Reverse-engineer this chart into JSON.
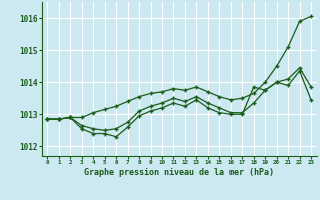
{
  "title": "Graphe pression niveau de la mer (hPa)",
  "background_color": "#cce8f0",
  "grid_color": "#ffffff",
  "line_color": "#1a5c1a",
  "marker_color": "#1a5c1a",
  "xlim": [
    -0.5,
    23.5
  ],
  "ylim": [
    1011.7,
    1016.5
  ],
  "yticks": [
    1012,
    1013,
    1014,
    1015,
    1016
  ],
  "xticks": [
    0,
    1,
    2,
    3,
    4,
    5,
    6,
    7,
    8,
    9,
    10,
    11,
    12,
    13,
    14,
    15,
    16,
    17,
    18,
    19,
    20,
    21,
    22,
    23
  ],
  "series": [
    [
      1012.85,
      1012.85,
      1012.9,
      1012.9,
      1013.05,
      1013.15,
      1013.25,
      1013.4,
      1013.55,
      1013.65,
      1013.7,
      1013.8,
      1013.75,
      1013.85,
      1013.7,
      1013.55,
      1013.45,
      1013.5,
      1013.65,
      1014.0,
      1014.5,
      1015.1,
      1015.9,
      1016.05
    ],
    [
      1012.85,
      1012.85,
      1012.9,
      1012.65,
      1012.55,
      1012.5,
      1012.55,
      1012.75,
      1013.1,
      1013.25,
      1013.35,
      1013.5,
      1013.4,
      1013.55,
      1013.35,
      1013.2,
      1013.05,
      1013.05,
      1013.35,
      1013.75,
      1014.0,
      1014.1,
      1014.45,
      1013.85
    ],
    [
      1012.85,
      1012.85,
      1012.9,
      1012.55,
      1012.4,
      1012.4,
      1012.3,
      1012.6,
      1012.95,
      1013.1,
      1013.2,
      1013.35,
      1013.25,
      1013.45,
      1013.2,
      1013.05,
      1013.0,
      1013.0,
      1013.85,
      1013.75,
      1014.0,
      1013.9,
      1014.35,
      1013.45
    ]
  ]
}
